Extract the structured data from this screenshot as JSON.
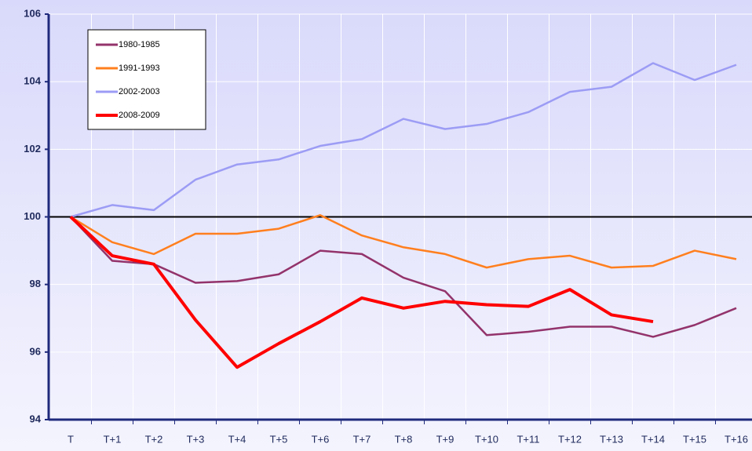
{
  "chart_data": {
    "type": "line",
    "categories": [
      "T",
      "T+1",
      "T+2",
      "T+3",
      "T+4",
      "T+5",
      "T+6",
      "T+7",
      "T+8",
      "T+9",
      "T+10",
      "T+11",
      "T+12",
      "T+13",
      "T+14",
      "T+15",
      "T+16"
    ],
    "series": [
      {
        "name": "1980-1985",
        "color": "#93336b",
        "values": [
          100,
          98.7,
          98.6,
          98.05,
          98.1,
          98.3,
          99.0,
          98.9,
          98.2,
          97.8,
          96.5,
          96.6,
          96.75,
          96.75,
          96.45,
          96.8,
          97.3
        ]
      },
      {
        "name": "1991-1993",
        "color": "#ff7f1e",
        "values": [
          100,
          99.25,
          98.9,
          99.5,
          99.5,
          99.65,
          100.05,
          99.45,
          99.1,
          98.9,
          98.5,
          98.75,
          98.85,
          98.5,
          98.55,
          99.0,
          98.75
        ]
      },
      {
        "name": "2002-2003",
        "color": "#9c9cf5",
        "values": [
          100,
          100.35,
          100.2,
          101.1,
          101.55,
          101.7,
          102.1,
          102.3,
          102.9,
          102.6,
          102.75,
          103.1,
          103.7,
          103.85,
          104.55,
          104.05,
          104.5
        ]
      },
      {
        "name": "2008-2009",
        "color": "#ff0000",
        "values": [
          100,
          98.85,
          98.6,
          96.95,
          95.55,
          96.25,
          96.9,
          97.6,
          97.3,
          97.5,
          97.4,
          97.35,
          97.85,
          97.1,
          96.9,
          null,
          null
        ]
      }
    ],
    "reference_line": 100,
    "ylim": [
      94,
      106
    ],
    "yticks": [
      94,
      96,
      98,
      100,
      102,
      104,
      106
    ],
    "grid": true,
    "legend": "upper left"
  }
}
